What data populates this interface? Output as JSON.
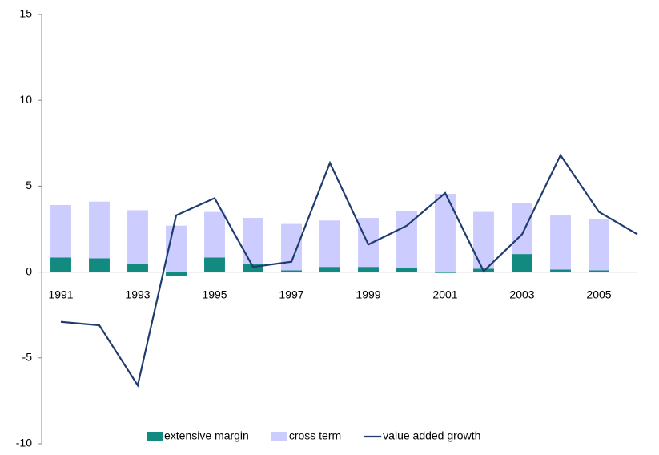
{
  "chart_data": {
    "type": "bar",
    "categories": [
      "1991",
      null,
      "1993",
      null,
      "1995",
      null,
      "1997",
      null,
      "1999",
      null,
      "2001",
      null,
      "2003",
      null,
      "2005",
      null
    ],
    "series": [
      {
        "name": "extensive margin",
        "type": "bar",
        "color": "#138a80",
        "values": [
          0.85,
          0.8,
          0.45,
          -0.25,
          0.85,
          0.5,
          0.1,
          0.3,
          0.3,
          0.25,
          -0.05,
          0.2,
          1.05,
          0.15,
          0.1,
          null
        ]
      },
      {
        "name": "cross term",
        "type": "bar",
        "color": "#ccccff",
        "values": [
          3.05,
          3.3,
          3.15,
          2.7,
          2.65,
          2.65,
          2.7,
          2.7,
          2.85,
          3.3,
          4.55,
          3.3,
          2.95,
          3.15,
          3.0,
          null
        ]
      },
      {
        "name": "value added growth",
        "type": "line",
        "color": "#1f3c6e",
        "values": [
          -2.9,
          -3.1,
          -6.6,
          3.3,
          4.3,
          0.3,
          0.6,
          6.35,
          1.6,
          2.7,
          4.6,
          0.05,
          2.2,
          6.8,
          3.5,
          2.2
        ]
      }
    ],
    "ylim": [
      -10,
      15
    ],
    "yticks": [
      -10,
      -5,
      0,
      5,
      10,
      15
    ]
  }
}
